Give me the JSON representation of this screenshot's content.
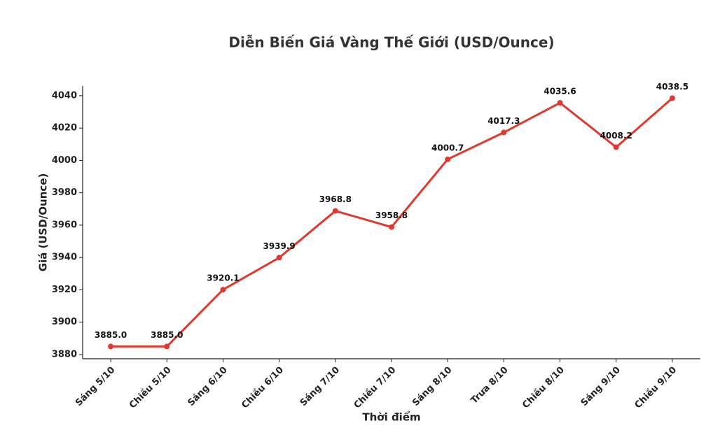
{
  "chart_data": {
    "type": "line",
    "title": "Diễn Biến Giá Vàng Thế Giới (USD/Ounce)",
    "x_label": "Thời điểm",
    "y_label": "Giá (USD/Ounce)",
    "categories": [
      "Sáng 5/10",
      "Chiều 5/10",
      "Sáng 6/10",
      "Chiều 6/10",
      "Sáng 7/10",
      "Chiều 7/10",
      "Sáng 8/10",
      "Trưa 8/10",
      "Chiều 8/10",
      "Sáng 9/10",
      "Chiều 9/10"
    ],
    "values": [
      3885.0,
      3885.0,
      3920.1,
      3939.9,
      3968.8,
      3958.8,
      4000.7,
      4017.3,
      4035.6,
      4008.2,
      4038.5
    ],
    "value_labels": [
      "3885.0",
      "3885.0",
      "3920.1",
      "3939.9",
      "3968.8",
      "3958.8",
      "4000.7",
      "4017.3",
      "4035.6",
      "4008.2",
      "4038.5"
    ],
    "color": "#e03a2e",
    "ylim": [
      3877.4,
      4046
    ],
    "yticks": [
      3880,
      3900,
      3920,
      3940,
      3960,
      3980,
      4000,
      4020,
      4040
    ],
    "grid": false
  }
}
